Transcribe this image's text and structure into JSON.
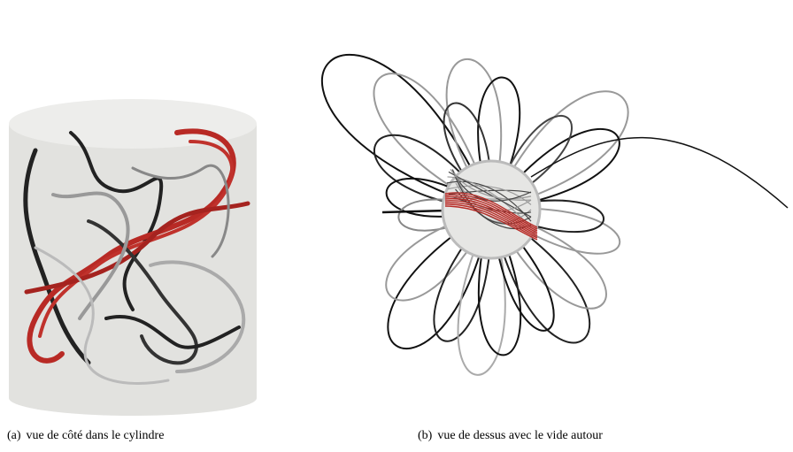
{
  "figures": [
    {
      "label": "(a)",
      "caption": "vue de côté dans le cylindre"
    },
    {
      "label": "(b)",
      "caption": "vue de dessus avec le vide autour"
    }
  ]
}
